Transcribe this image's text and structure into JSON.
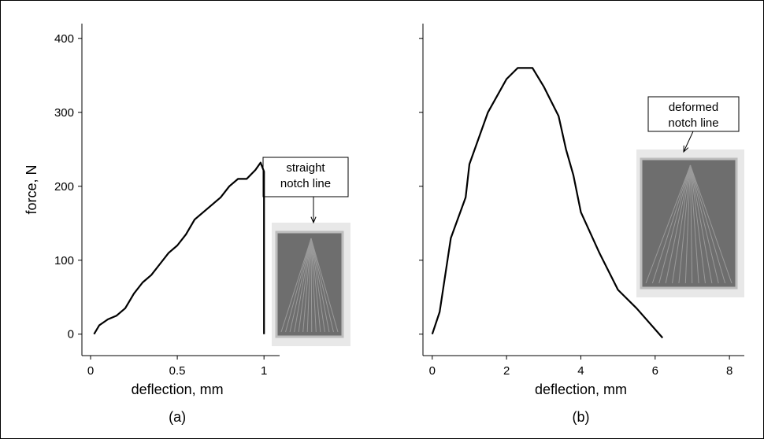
{
  "chart_data": [
    {
      "type": "line",
      "panel_label": "(a)",
      "x_label": "deflection, mm",
      "y_label": "force, N",
      "annotation": [
        "straight",
        "notch line"
      ],
      "xlim": [
        -0.05,
        1.09
      ],
      "xticks": [
        0,
        0.5,
        1
      ],
      "ylim": [
        -29,
        420
      ],
      "yticks": [
        0,
        100,
        200,
        300,
        400
      ],
      "ytick_labels": true,
      "series": [
        {
          "color": "#000000",
          "x": [
            0.02,
            0.05,
            0.1,
            0.15,
            0.2,
            0.25,
            0.3,
            0.35,
            0.4,
            0.45,
            0.5,
            0.55,
            0.6,
            0.65,
            0.7,
            0.75,
            0.8,
            0.85,
            0.9,
            0.95,
            0.98,
            1.0,
            1.0
          ],
          "values": [
            0,
            12,
            20,
            25,
            35,
            55,
            70,
            80,
            95,
            110,
            120,
            135,
            155,
            165,
            175,
            185,
            200,
            210,
            210,
            222,
            232,
            220,
            0
          ]
        }
      ]
    },
    {
      "type": "line",
      "panel_label": "(b)",
      "x_label": "deflection, mm",
      "annotation": [
        "deformed",
        "notch line"
      ],
      "xlim": [
        -0.25,
        8.4
      ],
      "xticks": [
        0,
        2,
        4,
        6,
        8
      ],
      "ylim": [
        -29,
        420
      ],
      "yticks": [
        0,
        100,
        200,
        300,
        400
      ],
      "ytick_labels": false,
      "series": [
        {
          "color": "#000000",
          "x": [
            0,
            0.2,
            0.5,
            0.9,
            1.0,
            1.5,
            2.0,
            2.3,
            2.7,
            3.0,
            3.4,
            3.6,
            3.8,
            4.0,
            4.5,
            5.0,
            5.5,
            6.2
          ],
          "values": [
            0,
            30,
            130,
            185,
            230,
            300,
            345,
            360,
            360,
            335,
            295,
            250,
            215,
            165,
            110,
            60,
            35,
            -5
          ]
        }
      ]
    }
  ]
}
